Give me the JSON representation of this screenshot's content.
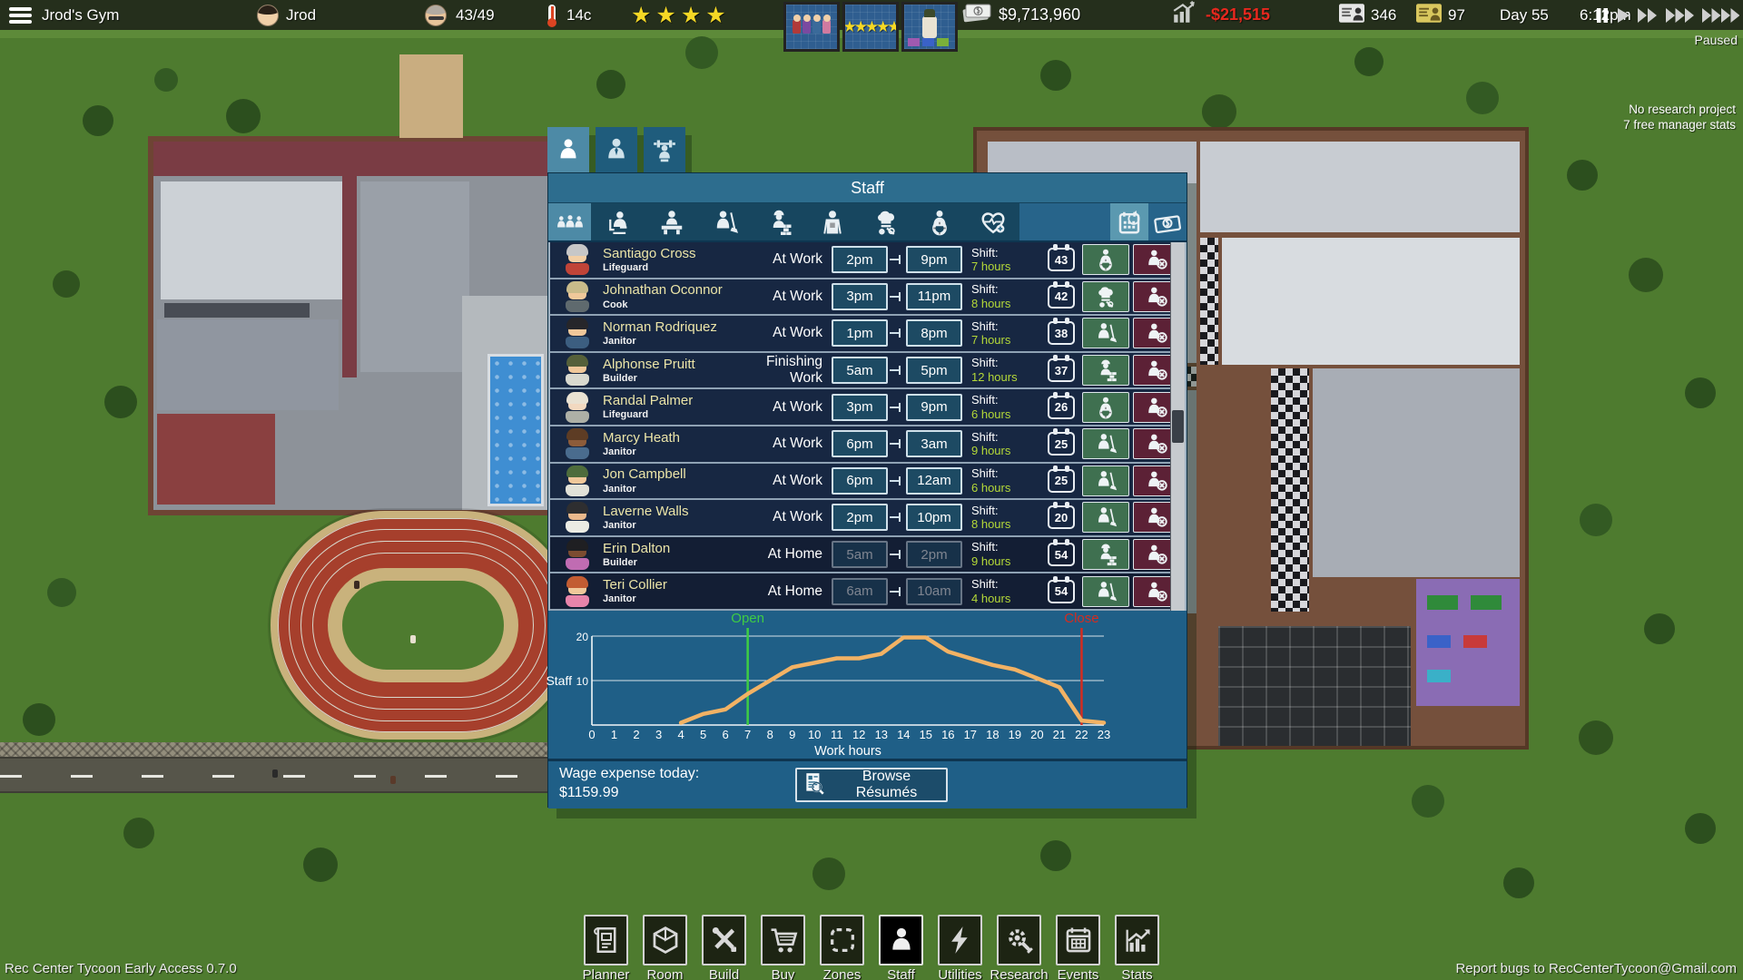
{
  "colors": {
    "panel_teal": "#2d6d8e",
    "row_navy": "#172742",
    "name_yellow": "#ece5a8",
    "hours_green": "#b4d838",
    "open_green": "#3ecc44",
    "close_red": "#d42c20",
    "profit_red": "#e8281e",
    "star_gold": "#f5d825",
    "line_orange": "#f2b264",
    "fire_maroon": "#5c2136",
    "hire_green": "#3f7050"
  },
  "top_bar": {
    "gym_name": "Jrod's Gym",
    "player_name": "Jrod",
    "occupancy": "43/49",
    "temperature": "14c",
    "rating_stars": "★★★★",
    "money": "$9,713,960",
    "profit_today": "-$21,515",
    "members": "346",
    "premium_members": "97",
    "day": "Day 55",
    "time": "6:12pm",
    "paused_label": "Paused",
    "notification_stars": "★★★★★"
  },
  "hud": {
    "research_status": "No research project",
    "manager_stats": "7 free manager stats"
  },
  "staff_panel": {
    "title": "Staff",
    "tabs": [
      {
        "name": "staff-tab",
        "icon": "person",
        "active": true
      },
      {
        "name": "manager-tab",
        "icon": "managertie",
        "active": false
      },
      {
        "name": "trainer-tab",
        "icon": "workout",
        "active": false
      }
    ],
    "filters": [
      {
        "name": "filter-all-staff",
        "icon": "group",
        "active": true
      },
      {
        "name": "filter-managers",
        "icon": "manager",
        "active": false
      },
      {
        "name": "filter-receptionists",
        "icon": "receptionist",
        "active": false
      },
      {
        "name": "filter-janitors",
        "icon": "janitor",
        "active": false
      },
      {
        "name": "filter-builders",
        "icon": "builder",
        "active": false
      },
      {
        "name": "filter-maintenance",
        "icon": "maintenance",
        "active": false
      },
      {
        "name": "filter-cooks",
        "icon": "cook",
        "active": false
      },
      {
        "name": "filter-lifeguards",
        "icon": "lifeguard",
        "active": false
      },
      {
        "name": "filter-trainers",
        "icon": "trainer",
        "active": false
      }
    ],
    "right_buttons": [
      {
        "name": "schedule-view-button",
        "icon": "schedule",
        "active": true
      },
      {
        "name": "wages-view-button",
        "icon": "wages",
        "active": false
      }
    ],
    "labels": {
      "shift_label": "Shift:"
    },
    "rows": [
      {
        "name": "Santiago Cross",
        "role": "Lifeguard",
        "status": "At Work",
        "start": "2pm",
        "end": "9pm",
        "hours": "7 hours",
        "badge": "43",
        "type_icon": "lifeguard",
        "avatar": {
          "hair": "#c7c7c7",
          "skin": "#f3cfa4",
          "shirt": "#c04438"
        }
      },
      {
        "name": "Johnathan Oconnor",
        "role": "Cook",
        "status": "At Work",
        "start": "3pm",
        "end": "11pm",
        "hours": "8 hours",
        "badge": "42",
        "type_icon": "cook",
        "avatar": {
          "hair": "#c9bb8a",
          "skin": "#f0c89a",
          "shirt": "#5f6a6e"
        }
      },
      {
        "name": "Norman Rodriquez",
        "role": "Janitor",
        "status": "At Work",
        "start": "1pm",
        "end": "8pm",
        "hours": "7 hours",
        "badge": "38",
        "type_icon": "janitor",
        "avatar": {
          "hair": "#26262a",
          "skin": "#f0c89a",
          "shirt": "#3c5e80"
        }
      },
      {
        "name": "Alphonse Pruitt",
        "role": "Builder",
        "status": "Finishing Work",
        "start": "5am",
        "end": "5pm",
        "hours": "12 hours",
        "badge": "37",
        "type_icon": "builder",
        "avatar": {
          "hair": "#55603a",
          "skin": "#f0c89a",
          "shirt": "#d9d9cf"
        }
      },
      {
        "name": "Randal Palmer",
        "role": "Lifeguard",
        "status": "At Work",
        "start": "3pm",
        "end": "9pm",
        "hours": "6 hours",
        "badge": "26",
        "type_icon": "lifeguard",
        "avatar": {
          "hair": "#e9e2d2",
          "skin": "#f2d9c0",
          "shirt": "#aeb0a6"
        }
      },
      {
        "name": "Marcy Heath",
        "role": "Janitor",
        "status": "At Work",
        "start": "6pm",
        "end": "3am",
        "hours": "9 hours",
        "badge": "25",
        "type_icon": "janitor",
        "avatar": {
          "hair": "#5d3c24",
          "skin": "#8d5c3a",
          "shirt": "#4a6c8e"
        }
      },
      {
        "name": "Jon Campbell",
        "role": "Janitor",
        "status": "At Work",
        "start": "6pm",
        "end": "12am",
        "hours": "6 hours",
        "badge": "25",
        "type_icon": "janitor",
        "avatar": {
          "hair": "#4e6c3c",
          "skin": "#f0c89a",
          "shirt": "#e2e2d8"
        }
      },
      {
        "name": "Laverne Walls",
        "role": "Janitor",
        "status": "At Work",
        "start": "2pm",
        "end": "10pm",
        "hours": "8 hours",
        "badge": "20",
        "type_icon": "janitor",
        "avatar": {
          "hair": "#2e2e30",
          "skin": "#eab98c",
          "shirt": "#ecece4"
        }
      },
      {
        "name": "Erin Dalton",
        "role": "Builder",
        "status": "At Home",
        "start": "5am",
        "end": "2pm",
        "hours": "9 hours",
        "badge": "54",
        "type_icon": "builder",
        "avatar": {
          "hair": "#1f1f22",
          "skin": "#7c4c30",
          "shirt": "#c06cb2"
        }
      },
      {
        "name": "Teri Collier",
        "role": "Janitor",
        "status": "At Home",
        "start": "6am",
        "end": "10am",
        "hours": "4 hours",
        "badge": "54",
        "type_icon": "janitor",
        "avatar": {
          "hair": "#c25c32",
          "skin": "#f0c89a",
          "shirt": "#e884aa"
        }
      }
    ],
    "chart": {
      "open_label": "Open",
      "close_label": "Close",
      "y_axis_label": "Staff",
      "x_axis_label": "Work hours",
      "y_ticks": [
        "20",
        "10"
      ]
    },
    "wage_label": "Wage expense today:",
    "wage_value": "$1159.99",
    "browse_resumes_label": "Browse Résumés"
  },
  "chart_data": {
    "type": "line",
    "x": [
      0,
      1,
      2,
      3,
      4,
      5,
      6,
      7,
      8,
      9,
      10,
      11,
      12,
      13,
      14,
      15,
      16,
      17,
      18,
      19,
      20,
      21,
      22,
      23
    ],
    "values": [
      0,
      0,
      0,
      0,
      0.5,
      2.5,
      3.5,
      7,
      10,
      13,
      14,
      15,
      15,
      16,
      19.7,
      19.7,
      16.5,
      15,
      13.5,
      12.5,
      10.5,
      8.5,
      1,
      0.5
    ],
    "open_hour": 7,
    "close_hour": 22,
    "xlabel": "Work hours",
    "ylabel": "Staff",
    "ylim": [
      0,
      20
    ],
    "gridlines": [
      10,
      20
    ],
    "line_start_hour": 4
  },
  "toolbar": {
    "items": [
      {
        "label": "Planner",
        "icon": "blueprint",
        "active": false
      },
      {
        "label": "Room",
        "icon": "roomcube",
        "active": false
      },
      {
        "label": "Build",
        "icon": "buildtools",
        "active": false
      },
      {
        "label": "Buy",
        "icon": "cart",
        "active": false
      },
      {
        "label": "Zones",
        "icon": "zones",
        "active": false
      },
      {
        "label": "Staff",
        "icon": "person",
        "active": true
      },
      {
        "label": "Utilities",
        "icon": "bolt",
        "active": false
      },
      {
        "label": "Research",
        "icon": "gearwrench",
        "active": false
      },
      {
        "label": "Events",
        "icon": "calendar",
        "active": false
      },
      {
        "label": "Stats",
        "icon": "statsbars",
        "active": false
      }
    ]
  },
  "speed_controls": [
    {
      "name": "pause-button",
      "icon": "pause",
      "active": true
    },
    {
      "name": "play-button",
      "icon": "play",
      "active": false
    },
    {
      "name": "fast-forward-2-button",
      "icon": "ff2",
      "active": false
    },
    {
      "name": "fast-forward-3-button",
      "icon": "ff3",
      "active": false
    },
    {
      "name": "fast-forward-4-button",
      "icon": "ff4",
      "active": false
    }
  ],
  "footer": {
    "version": "Rec Center Tycoon Early Access 0.7.0",
    "report_bugs": "Report bugs to RecCenterTycoon@Gmail.com"
  }
}
